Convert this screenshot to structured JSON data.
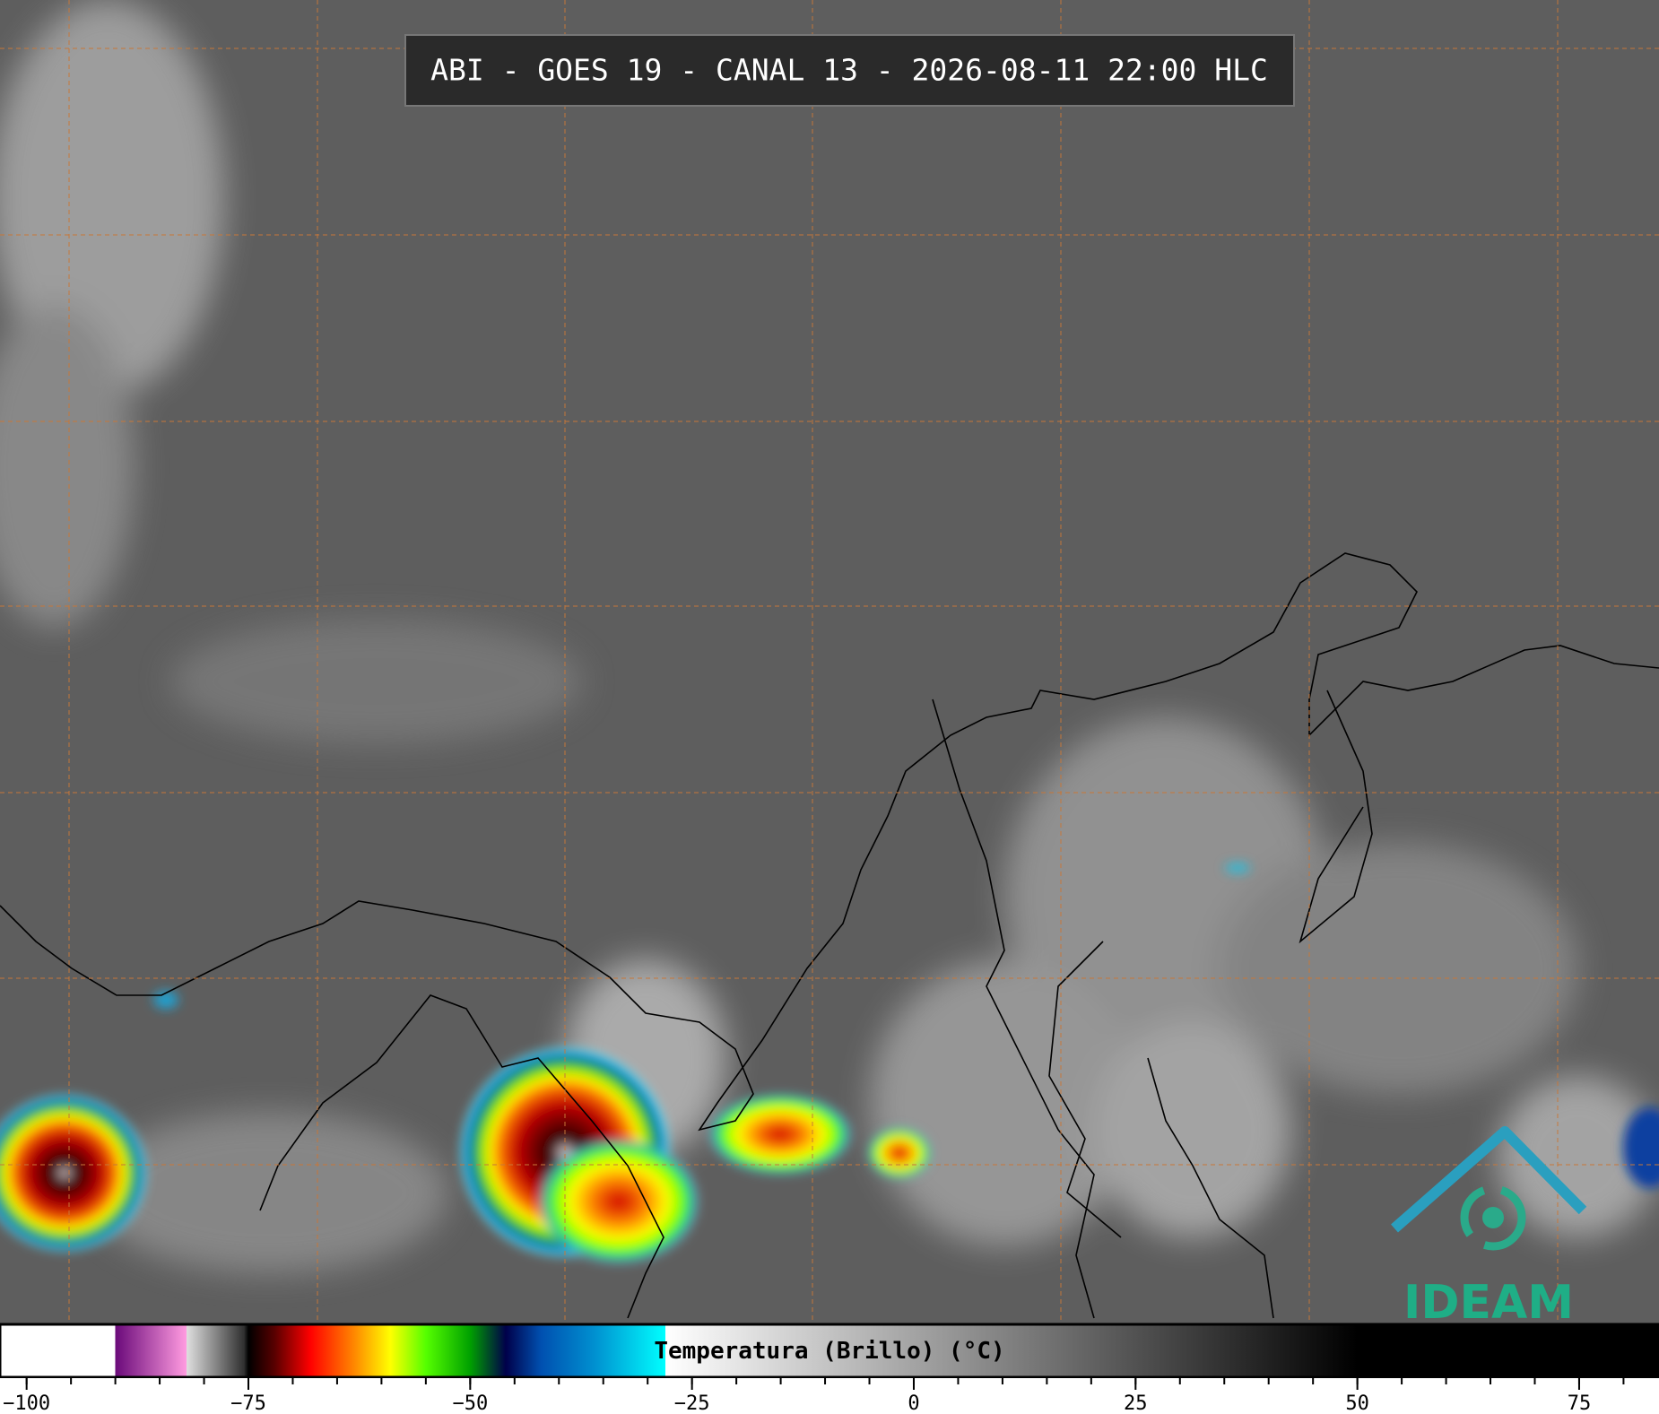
{
  "header": {
    "title": "ABI - GOES 19 - CANAL 13 - 2026-08-11 22:00 HLC"
  },
  "colorbar": {
    "label": "Temperatura (Brillo) (°C)",
    "lim": [
      -103,
      84
    ],
    "ticks": [
      {
        "value": -100,
        "label": "−100"
      },
      {
        "value": -75,
        "label": "−75"
      },
      {
        "value": -50,
        "label": "−50"
      },
      {
        "value": -25,
        "label": "−25"
      },
      0,
      25,
      50,
      75
    ],
    "minor_ticks": [
      -100,
      -95,
      -90,
      -85,
      -80,
      -75,
      -70,
      -65,
      -60,
      -55,
      -50,
      -45,
      -40,
      -35,
      -30,
      -25,
      -20,
      -15,
      -10,
      -5,
      0,
      5,
      10,
      15,
      20,
      25,
      30,
      35,
      40,
      45,
      50,
      55,
      60,
      65,
      70,
      75,
      80
    ],
    "colormap": [
      [
        -103,
        "#ffffff"
      ],
      [
        -90,
        "#ffffff"
      ],
      [
        -90,
        "#6a0a7a"
      ],
      [
        -82,
        "#ff9be0"
      ],
      [
        -82,
        "#e0e0e0"
      ],
      [
        -75.5,
        "#303030"
      ],
      [
        -75,
        "#000000"
      ],
      [
        -72,
        "#5a0000"
      ],
      [
        -68,
        "#ff0000"
      ],
      [
        -63,
        "#ff8a00"
      ],
      [
        -59,
        "#ffff00"
      ],
      [
        -55,
        "#55ff00"
      ],
      [
        -50,
        "#00a000"
      ],
      [
        -46,
        "#00004a"
      ],
      [
        -42,
        "#0050b0"
      ],
      [
        -36,
        "#0090d0"
      ],
      [
        -28,
        "#00ffff"
      ],
      [
        -28,
        "#ffffff"
      ],
      [
        50,
        "#000000"
      ],
      [
        84,
        "#000000"
      ]
    ]
  },
  "logo": "IDEAM"
}
